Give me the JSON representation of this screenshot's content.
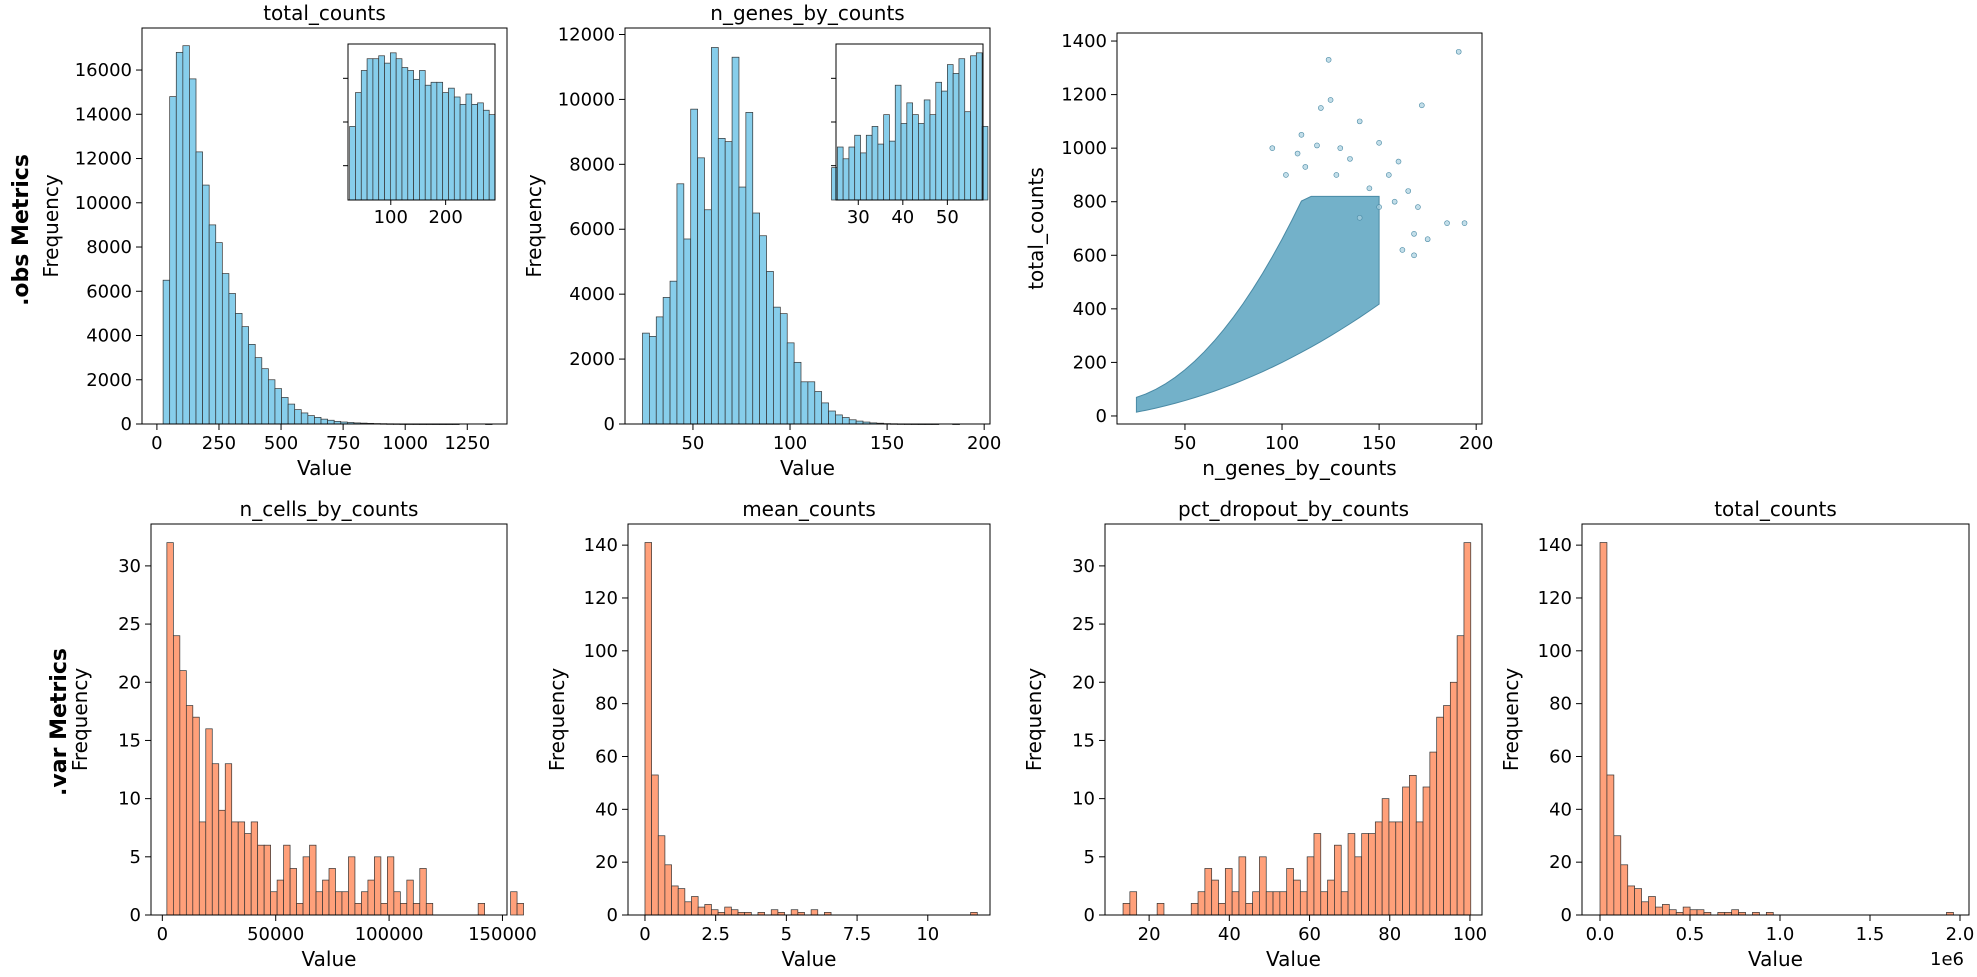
{
  "row_labels": {
    "obs": ".obs Metrics",
    "var": ".var Metrics"
  },
  "colors": {
    "obs_bar": "#87CEEB",
    "var_bar": "#FFA07A",
    "scatter": "#5BA3C0",
    "edge": "#333333"
  },
  "chart_data": [
    {
      "id": "obs_total_counts",
      "type": "bar",
      "title": "total_counts",
      "xlabel": "Value",
      "ylabel": "Frequency",
      "xlim": [
        -60,
        1410
      ],
      "ylim": [
        0,
        17900
      ],
      "xticks": [
        0,
        250,
        500,
        750,
        1000,
        1250
      ],
      "yticks": [
        0,
        2000,
        4000,
        6000,
        8000,
        10000,
        12000,
        14000,
        16000
      ],
      "bin_start": 25,
      "bin_width": 26.5,
      "values": [
        6500,
        14800,
        16800,
        17100,
        15600,
        12300,
        10800,
        9000,
        8200,
        6800,
        5900,
        5000,
        4400,
        3600,
        3000,
        2500,
        2000,
        1600,
        1200,
        900,
        650,
        500,
        380,
        300,
        220,
        170,
        120,
        90,
        70,
        50,
        40,
        30,
        20,
        15,
        10,
        8,
        5,
        4,
        3,
        2,
        2,
        1,
        1,
        1,
        1,
        0,
        0,
        0,
        0,
        1
      ],
      "inset": {
        "xlim": [
          22,
          290
        ],
        "xticks": [
          100,
          200
        ],
        "bin_start": 25,
        "bin_width": 10.6,
        "values": [
          0.5,
          0.73,
          0.88,
          0.96,
          0.96,
          0.98,
          0.93,
          1.0,
          0.96,
          0.9,
          0.88,
          0.82,
          0.88,
          0.78,
          0.8,
          0.8,
          0.73,
          0.76,
          0.7,
          0.65,
          0.72,
          0.65,
          0.66,
          0.61,
          0.58
        ]
      }
    },
    {
      "id": "obs_n_genes_by_counts",
      "type": "bar",
      "title": "n_genes_by_counts",
      "xlabel": "Value",
      "ylabel": "Frequency",
      "xlim": [
        15,
        203
      ],
      "ylim": [
        0,
        12200
      ],
      "xticks": [
        50,
        100,
        150,
        200
      ],
      "yticks": [
        0,
        2000,
        4000,
        6000,
        8000,
        10000,
        12000
      ],
      "bin_start": 24,
      "bin_width": 3.55,
      "values": [
        2800,
        2700,
        3300,
        3900,
        4400,
        7400,
        5700,
        9700,
        8200,
        6600,
        11600,
        8800,
        8700,
        11300,
        7300,
        9600,
        6500,
        5800,
        4700,
        3600,
        3400,
        2500,
        1900,
        1300,
        1300,
        1000,
        650,
        400,
        280,
        200,
        130,
        90,
        60,
        35,
        25,
        12,
        8,
        5,
        3,
        2,
        1,
        1,
        1,
        0,
        0,
        1
      ],
      "inset": {
        "xlim": [
          25,
          58
        ],
        "xticks": [
          30,
          40,
          50
        ],
        "bin_start": 24,
        "bin_width": 1.3,
        "values": [
          0.22,
          0.36,
          0.28,
          0.36,
          0.44,
          0.32,
          0.44,
          0.5,
          0.38,
          0.58,
          0.4,
          0.78,
          0.52,
          0.66,
          0.58,
          0.52,
          0.68,
          0.58,
          0.8,
          0.74,
          0.92,
          0.86,
          0.96,
          0.6,
          0.98,
          1.0,
          0.5
        ]
      }
    },
    {
      "id": "obs_scatter",
      "type": "scatter",
      "title": "",
      "xlabel": "n_genes_by_counts",
      "ylabel": "total_counts",
      "xlim": [
        15,
        203
      ],
      "ylim": [
        -30,
        1430
      ],
      "xticks": [
        50,
        100,
        150,
        200
      ],
      "yticks": [
        0,
        200,
        400,
        600,
        800,
        1000,
        1200,
        1400
      ],
      "points": [
        [
          95,
          1000
        ],
        [
          110,
          1050
        ],
        [
          120,
          1150
        ],
        [
          125,
          1180
        ],
        [
          124,
          1330
        ],
        [
          130,
          1000
        ],
        [
          140,
          1100
        ],
        [
          150,
          1020
        ],
        [
          155,
          900
        ],
        [
          160,
          950
        ],
        [
          165,
          840
        ],
        [
          170,
          780
        ],
        [
          172,
          1160
        ],
        [
          175,
          660
        ],
        [
          185,
          720
        ],
        [
          191,
          1360
        ],
        [
          194,
          720
        ],
        [
          108,
          980
        ],
        [
          118,
          1010
        ],
        [
          135,
          960
        ],
        [
          145,
          850
        ],
        [
          158,
          800
        ],
        [
          168,
          680
        ],
        [
          112,
          930
        ],
        [
          102,
          900
        ],
        [
          128,
          900
        ],
        [
          150,
          780
        ],
        [
          162,
          620
        ],
        [
          168,
          600
        ],
        [
          140,
          740
        ]
      ]
    },
    {
      "id": "var_n_cells_by_counts",
      "type": "bar",
      "title": "n_cells_by_counts",
      "xlabel": "Value",
      "ylabel": "Frequency",
      "xlim": [
        -5000,
        152000
      ],
      "ylim": [
        0,
        33.6
      ],
      "xticks": [
        0,
        50000,
        100000,
        150000
      ],
      "yticks": [
        0,
        5,
        10,
        15,
        20,
        25,
        30
      ],
      "bin_start": 2000,
      "bin_width": 2860,
      "values": [
        32,
        24,
        21,
        18,
        17,
        8,
        16,
        13,
        9,
        13,
        8,
        8,
        7,
        8,
        6,
        6,
        2,
        3,
        6,
        4,
        1,
        5,
        6,
        2,
        3,
        4,
        2,
        2,
        5,
        1,
        2,
        3,
        5,
        1,
        5,
        2,
        1,
        3,
        1,
        4,
        1,
        0,
        0,
        0,
        0,
        0,
        0,
        0,
        1,
        0,
        0,
        0,
        0,
        2,
        1
      ]
    },
    {
      "id": "var_mean_counts",
      "type": "bar",
      "title": "mean_counts",
      "xlabel": "Value",
      "ylabel": "Frequency",
      "xlim": [
        -0.6,
        12.2
      ],
      "ylim": [
        0,
        148
      ],
      "xticks": [
        0.0,
        2.5,
        5.0,
        7.5,
        10.0
      ],
      "yticks": [
        0,
        20,
        40,
        60,
        80,
        100,
        120,
        140
      ],
      "bin_start": 0.0,
      "bin_width": 0.235,
      "values": [
        141,
        53,
        30,
        19,
        11,
        10,
        5,
        7,
        3,
        4,
        2,
        1,
        3,
        2,
        1,
        1,
        0,
        1,
        0,
        2,
        1,
        0,
        2,
        1,
        0,
        2,
        0,
        1,
        0,
        0,
        0,
        0,
        0,
        0,
        0,
        0,
        0,
        0,
        0,
        0,
        0,
        0,
        0,
        0,
        0,
        0,
        0,
        0,
        0,
        1
      ]
    },
    {
      "id": "var_pct_dropout_by_counts",
      "type": "bar",
      "title": "pct_dropout_by_counts",
      "xlabel": "Value",
      "ylabel": "Frequency",
      "xlim": [
        9,
        103
      ],
      "ylim": [
        0,
        33.6
      ],
      "xticks": [
        20,
        40,
        60,
        80,
        100
      ],
      "yticks": [
        0,
        5,
        10,
        15,
        20,
        25,
        30
      ],
      "bin_start": 13.5,
      "bin_width": 1.7,
      "values": [
        1,
        2,
        0,
        0,
        0,
        1,
        0,
        0,
        0,
        0,
        1,
        2,
        4,
        3,
        1,
        4,
        2,
        5,
        1,
        2,
        5,
        2,
        2,
        2,
        4,
        3,
        2,
        5,
        7,
        2,
        3,
        6,
        2,
        7,
        5,
        7,
        7,
        8,
        10,
        8,
        8,
        11,
        12,
        8,
        11,
        14,
        17,
        18,
        20,
        24,
        32
      ]
    },
    {
      "id": "var_total_counts",
      "type": "bar",
      "title": "total_counts",
      "xlabel": "Value",
      "ylabel": "Frequency",
      "xlim": [
        -100000,
        2050000
      ],
      "ylim": [
        0,
        148
      ],
      "xticks": [
        0,
        500000,
        1000000,
        1500000,
        2000000
      ],
      "xtick_labels": [
        "0.0",
        "0.5",
        "1.0",
        "1.5",
        "2.0"
      ],
      "offset_text": "1e6",
      "yticks": [
        0,
        20,
        40,
        60,
        80,
        100,
        120,
        140
      ],
      "bin_start": 0,
      "bin_width": 38500,
      "values": [
        141,
        53,
        30,
        19,
        11,
        10,
        5,
        7,
        3,
        4,
        2,
        1,
        3,
        2,
        2,
        1,
        0,
        1,
        1,
        2,
        1,
        0,
        1,
        0,
        1,
        0,
        0,
        0,
        0,
        0,
        0,
        0,
        0,
        0,
        0,
        0,
        0,
        0,
        0,
        0,
        0,
        0,
        0,
        0,
        0,
        0,
        0,
        0,
        0,
        0,
        1
      ]
    }
  ]
}
